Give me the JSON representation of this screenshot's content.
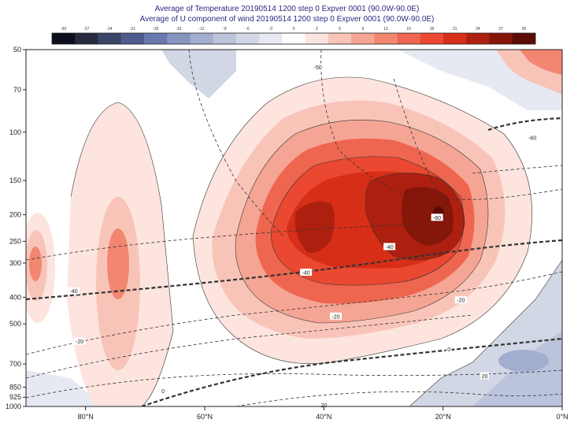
{
  "titles": {
    "line1": "Average of Temperature 20190514 1200 step 0 Expver 0001 (90.0W-90.0E)",
    "line2": "Average of U component of wind 20190514 1200 step 0 Expver 0001 (90.0W-90.0E)"
  },
  "chart_data": {
    "type": "heatmap",
    "colorbar": {
      "ticks": [
        "-30",
        "-27",
        "-24",
        "-21",
        "-18",
        "-15",
        "-12",
        "-9",
        "-6",
        "-3",
        "0",
        "3",
        "6",
        "9",
        "12",
        "15",
        "18",
        "21",
        "24",
        "27",
        "30"
      ],
      "colors": [
        "#0e0f1d",
        "#262b3e",
        "#3a4467",
        "#4e5c8d",
        "#6879ad",
        "#8694bf",
        "#a2adcf",
        "#bcc4dc",
        "#d2d7e6",
        "#e6e9f1",
        "#ffffff",
        "#fde4de",
        "#f9c4b8",
        "#f5a594",
        "#f28671",
        "#ee6650",
        "#ea4830",
        "#d72e17",
        "#ad200f",
        "#85160a",
        "#5a0c05"
      ]
    },
    "xaxis": {
      "ticks": [
        "80°N",
        "60°N",
        "40°N",
        "20°N",
        "0°N"
      ],
      "values": [
        80,
        60,
        40,
        20,
        0
      ],
      "range": [
        90,
        0
      ]
    },
    "yaxis": {
      "ticks": [
        "50",
        "70",
        "100",
        "150",
        "200",
        "250",
        "300",
        "400",
        "500",
        "700",
        "850",
        "925",
        "1000"
      ],
      "values": [
        50,
        70,
        100,
        150,
        200,
        250,
        300,
        400,
        500,
        700,
        850,
        925,
        1000
      ],
      "range": [
        50,
        1000
      ],
      "scale": "log",
      "inverted": true
    },
    "contour_labels": [
      {
        "text": "-50",
        "lat": 41,
        "p": 58
      },
      {
        "text": "-60",
        "lat": 21,
        "p": 205
      },
      {
        "text": "-40",
        "lat": 29,
        "p": 262
      },
      {
        "text": "-40",
        "lat": 43,
        "p": 325
      },
      {
        "text": "-40",
        "lat": 82,
        "p": 380
      },
      {
        "text": "-20",
        "lat": 38,
        "p": 470
      },
      {
        "text": "-20",
        "lat": 17,
        "p": 410
      },
      {
        "text": "-20",
        "lat": 81,
        "p": 580
      },
      {
        "text": "0",
        "lat": 19,
        "p": 620
      },
      {
        "text": "20",
        "lat": 13,
        "p": 775
      },
      {
        "text": "0",
        "lat": 67,
        "p": 880
      },
      {
        "text": "20",
        "lat": 40,
        "p": 990
      },
      {
        "text": "-60",
        "lat": 5,
        "p": 105
      }
    ]
  }
}
